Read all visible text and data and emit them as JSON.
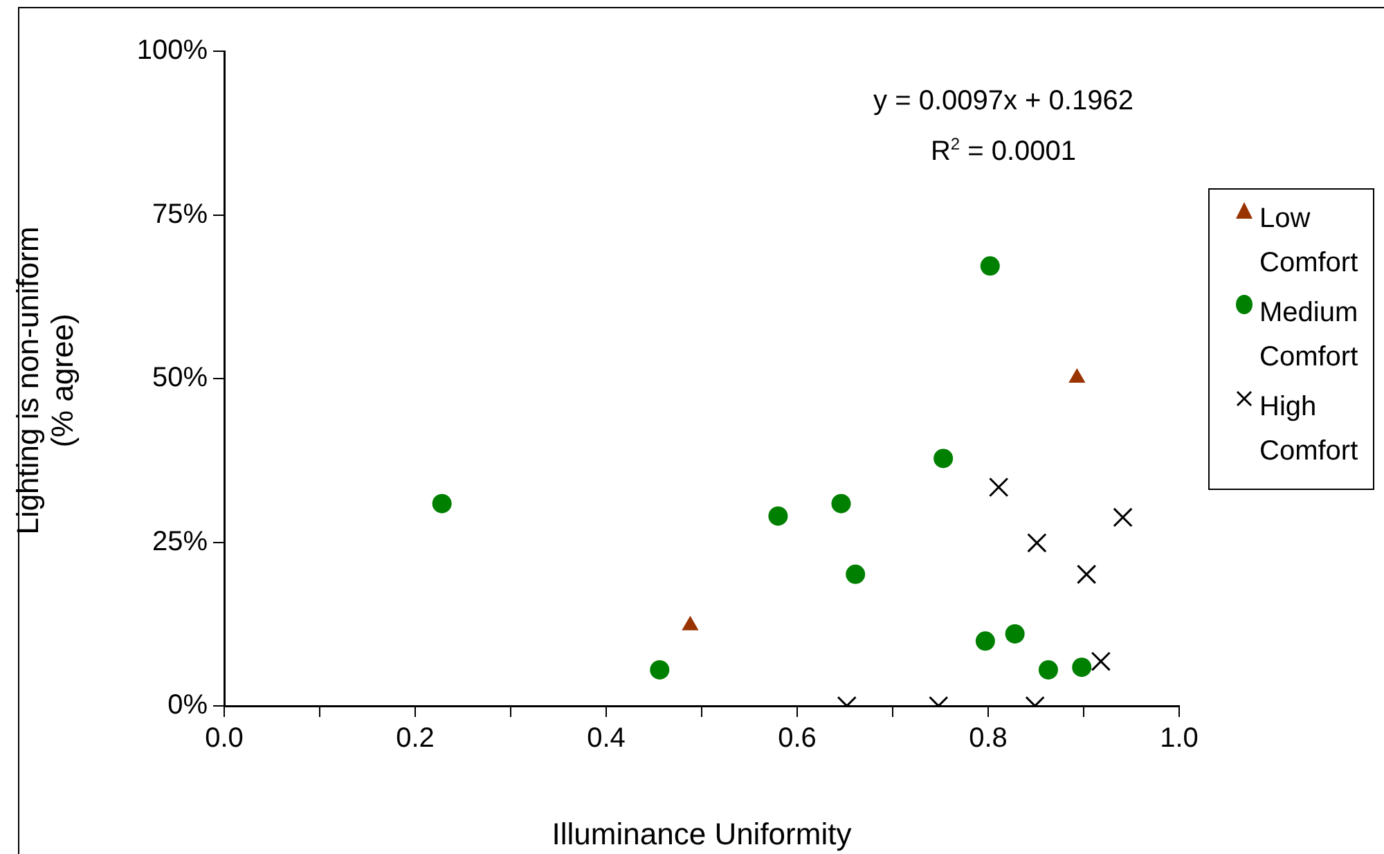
{
  "chart_data": {
    "type": "scatter",
    "xlabel": "Illuminance Uniformity",
    "ylabel": "Lighting is non-uniform (% agree)",
    "annotations": [
      "y = 0.0097x + 0.1962",
      "R$^{2}$ = 0.0001"
    ],
    "series": [
      {
        "name": "Low Comfort",
        "color": "#993300",
        "marker": "triangle",
        "x": [
          0.488,
          0.893
        ],
        "values": [
          12.3,
          50.1
        ]
      },
      {
        "name": "Medium Comfort",
        "color": "#008000",
        "marker": "circle",
        "x": [
          0.228,
          0.456,
          0.802,
          0.753,
          0.646,
          0.58,
          0.661,
          0.797,
          0.828,
          0.863,
          0.898
        ],
        "values": [
          30.9,
          5.5,
          67.2,
          37.8,
          30.9,
          29.0,
          20.1,
          9.9,
          11.0,
          5.5,
          5.9
        ]
      },
      {
        "name": "High Comfort",
        "color": "#000000",
        "marker": "cross",
        "x": [
          0.811,
          0.851,
          0.941,
          0.903,
          0.918,
          0.652,
          0.748,
          0.849
        ],
        "values": [
          33.4,
          24.9,
          28.8,
          20.1,
          6.8,
          0,
          0,
          0
        ]
      }
    ],
    "xlim": [
      0,
      1
    ],
    "xticks": [
      {
        "value": 0,
        "label": "0.0"
      },
      {
        "value": 0.1,
        "label": null
      },
      {
        "value": 0.2,
        "label": "0.2"
      },
      {
        "value": 0.3,
        "label": null
      },
      {
        "value": 0.4,
        "label": "0.4"
      },
      {
        "value": 0.5,
        "label": null
      },
      {
        "value": 0.6,
        "label": "0.6"
      },
      {
        "value": 0.7,
        "label": null
      },
      {
        "value": 0.8,
        "label": "0.8"
      },
      {
        "value": 0.9,
        "label": null
      },
      {
        "value": 1,
        "label": "1.0"
      }
    ],
    "ylim": [
      0,
      100
    ],
    "yticks": [
      {
        "value": 0,
        "label": "0%"
      },
      {
        "value": 25,
        "label": "25%"
      },
      {
        "value": 50,
        "label": "50%"
      },
      {
        "value": 75,
        "label": "75%"
      },
      {
        "value": 100,
        "label": "100%"
      }
    ],
    "grid": false,
    "legend": "right"
  }
}
